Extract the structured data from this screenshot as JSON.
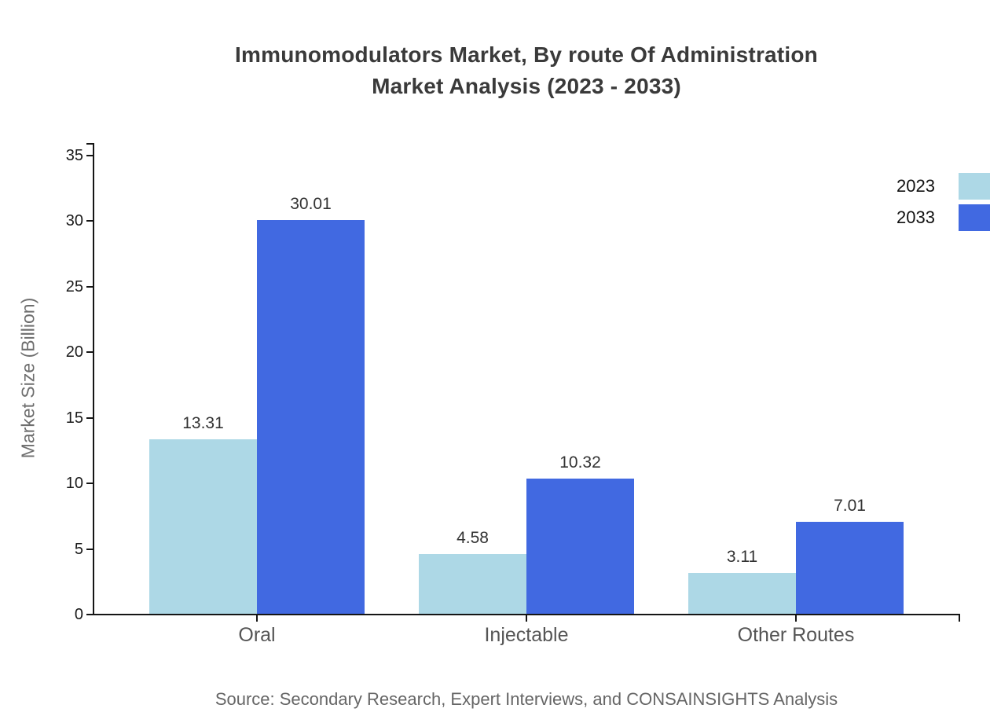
{
  "title": {
    "line1": "Immunomodulators Market, By route Of Administration",
    "line2": "Market Analysis (2023 - 2033)"
  },
  "source": "Source: Secondary Research, Expert Interviews, and CONSAINSIGHTS Analysis",
  "chart_data": {
    "type": "bar",
    "title": "Immunomodulators Market, By route Of Administration Market Analysis (2023 - 2033)",
    "categories": [
      "Oral",
      "Injectable",
      "Other Routes"
    ],
    "series": [
      {
        "name": "2023",
        "color": "#ADD8E6",
        "values": [
          13.31,
          4.58,
          3.11
        ]
      },
      {
        "name": "2033",
        "color": "#4169E1",
        "values": [
          30.01,
          10.32,
          7.01
        ]
      }
    ],
    "xlabel": "",
    "ylabel": "Market Size (Billion)",
    "ylim": [
      0,
      35
    ],
    "yticks": [
      0,
      5,
      10,
      15,
      20,
      25,
      30,
      35
    ],
    "grid": false,
    "legend_position": "top-right",
    "value_labels": true,
    "axis_color": "#151515",
    "value_label_color": "#333333",
    "category_label_color": "#555555"
  }
}
